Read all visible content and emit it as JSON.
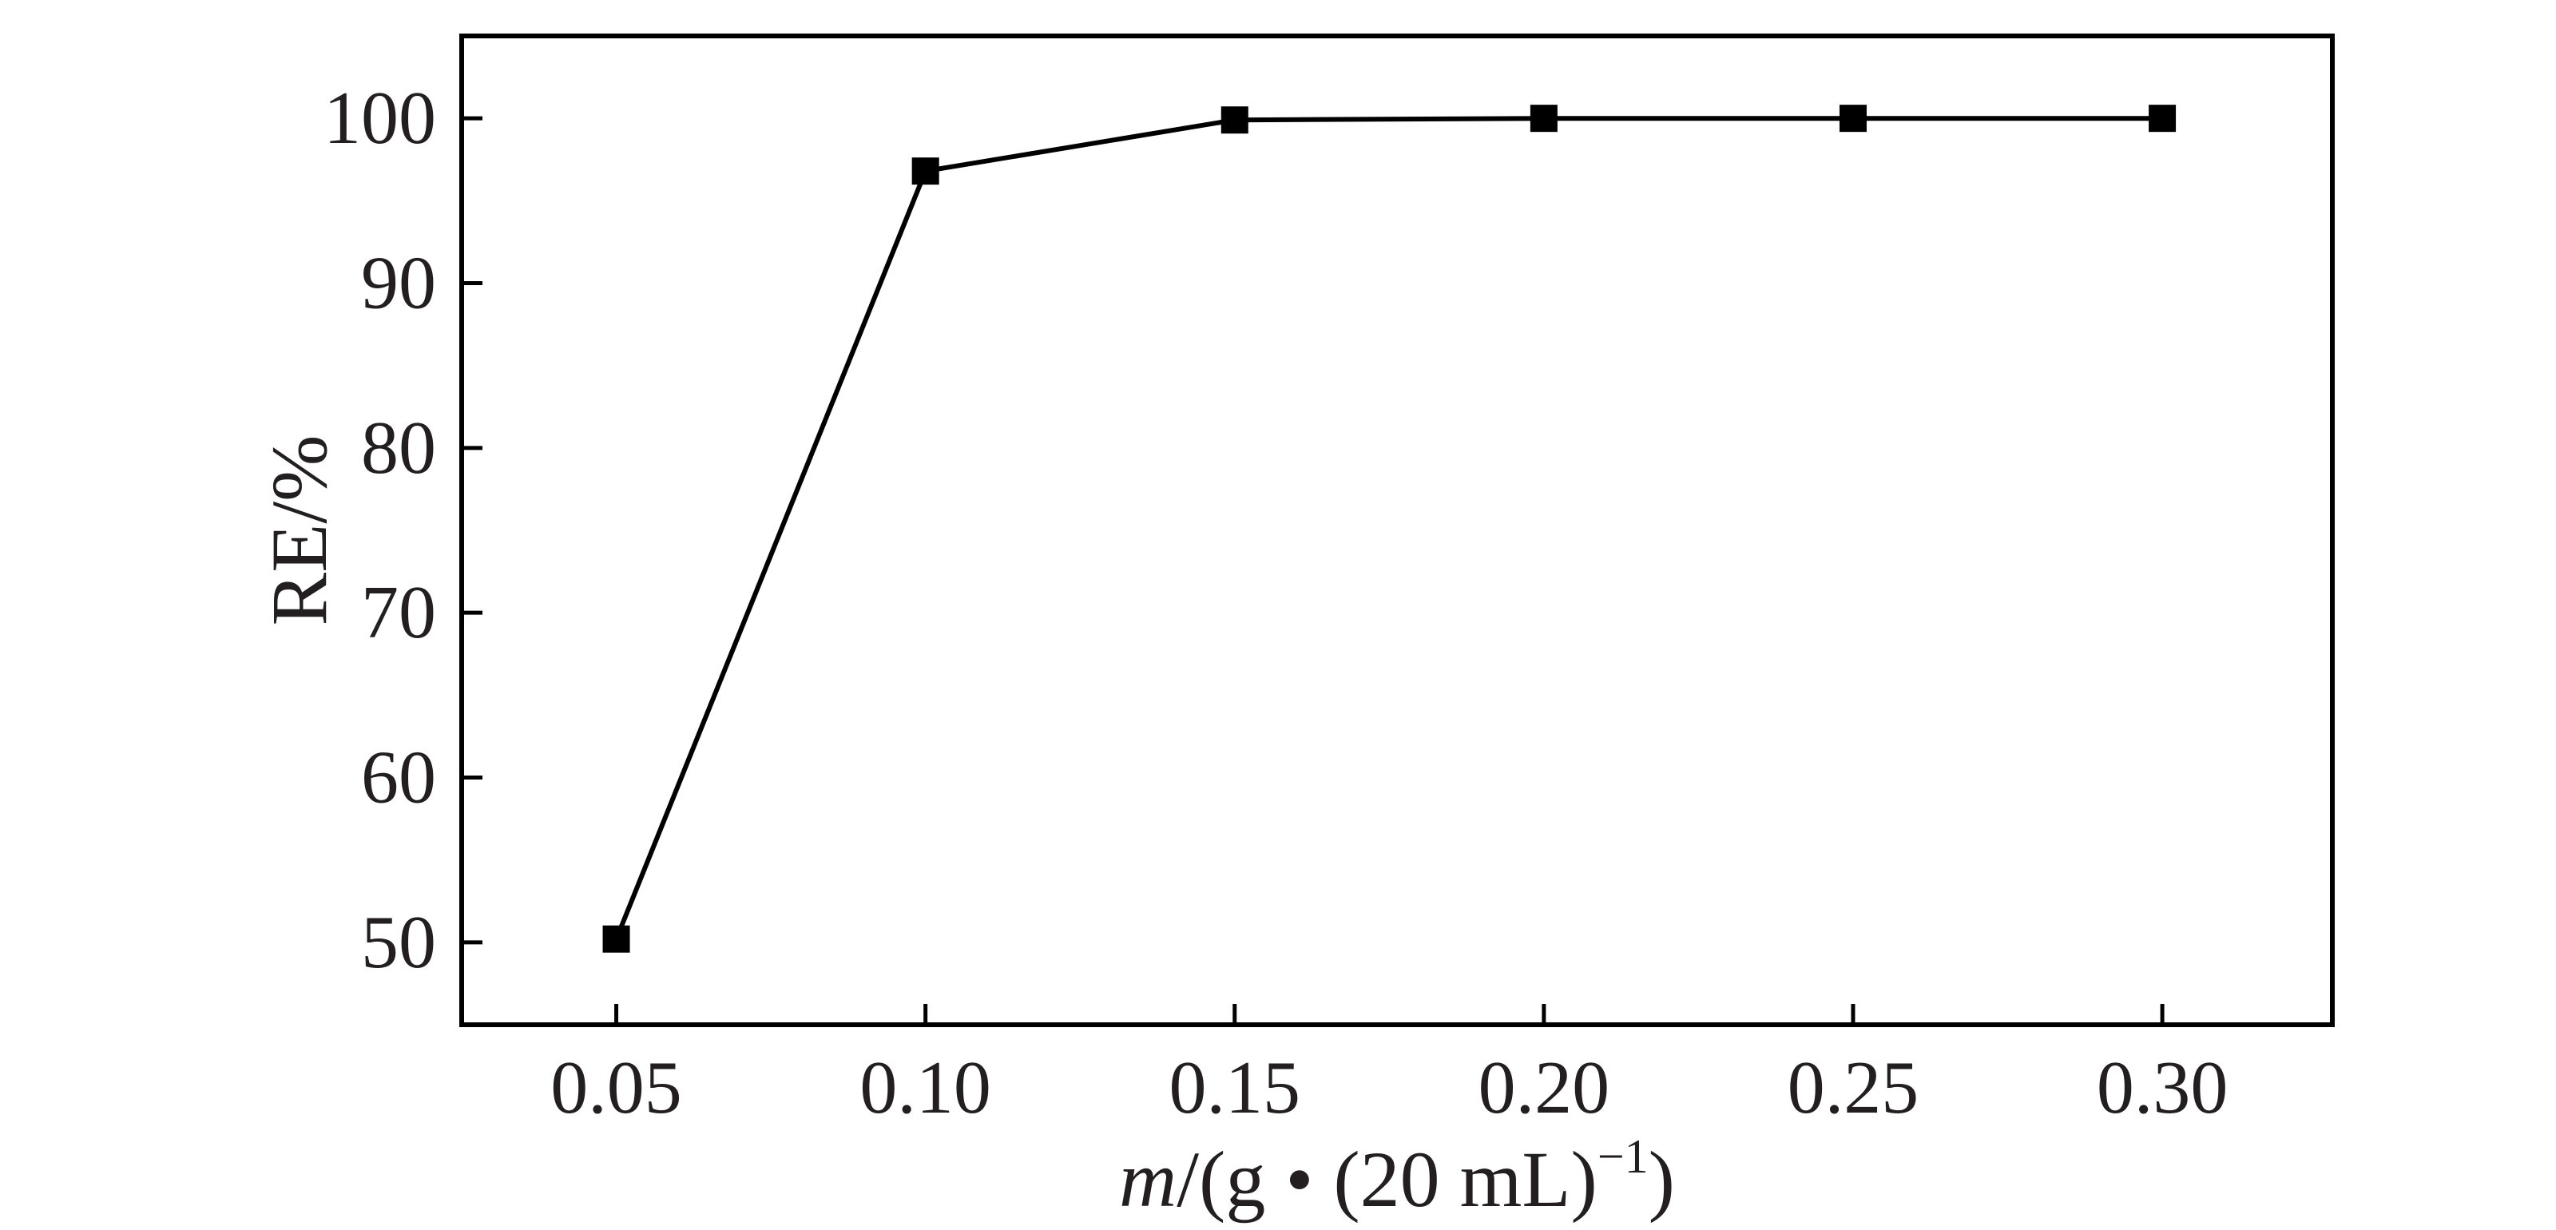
{
  "chart_data": {
    "type": "line",
    "x": [
      0.05,
      0.1,
      0.15,
      0.2,
      0.25,
      0.3
    ],
    "series": [
      {
        "values": [
          50.2,
          96.8,
          99.9,
          100.0,
          100.0,
          100.0
        ]
      }
    ],
    "x_ticks": [
      "0.05",
      "0.10",
      "0.15",
      "0.20",
      "0.25",
      "0.30"
    ],
    "y_ticks": [
      "50",
      "60",
      "70",
      "80",
      "90",
      "100"
    ],
    "xlabel": {
      "italic": "m",
      "main": "/(g • (20 mL)",
      "superscript": "−1",
      "close": ")"
    },
    "ylabel": "RE/%",
    "xlim": [
      0.025,
      0.3275
    ],
    "ylim": [
      45,
      105
    ],
    "grid": false,
    "marker": "square",
    "colors": {
      "line": "#000000",
      "marker": "#000000",
      "frame": "#000000",
      "text": "#231f20"
    }
  }
}
